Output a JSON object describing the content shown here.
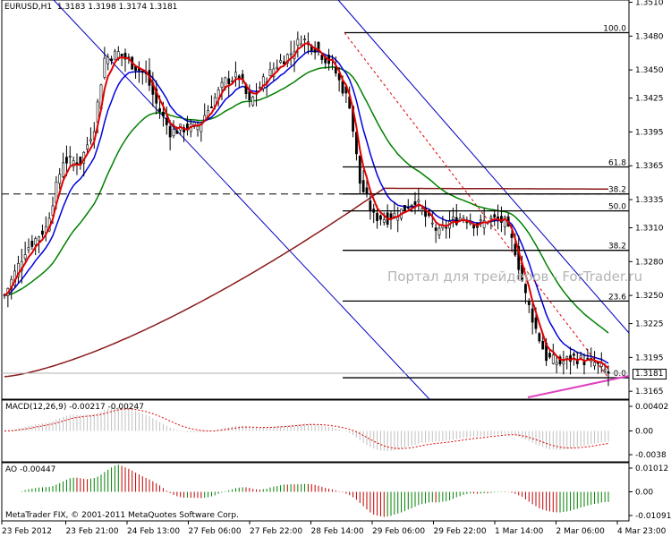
{
  "header": {
    "symbol_label": "EURUSD,H1",
    "ohlc": "1.3183 1.3198 1.3174 1.3181"
  },
  "watermark": "Портал для трейдеров - ForTrader.ru",
  "copyright": "MetaTrader FIX, © 2001-2011 MetaQuotes Software Corp.",
  "macd_label": "MACD(12,26,9) -0.00217 -0.00247",
  "ao_label": "AO -0.00447",
  "current_price": "1.3181",
  "colors": {
    "candle": "#000000",
    "ema_fast": "#e00000",
    "ema_mid": "#0000e0",
    "ema_slow": "#008000",
    "ema_long": "#8b1a1a",
    "fib": "#000000",
    "channel": "#0000c0",
    "trend_pink": "#e040c0",
    "macd_hist": "#c0c0c0",
    "macd_signal": "#e00000",
    "ao_up": "#008000",
    "ao_down": "#c00000"
  },
  "chart_data": {
    "type": "candlestick",
    "symbol": "EURUSD",
    "timeframe": "H1",
    "x_tick_labels": [
      "23 Feb 2012",
      "23 Feb 21:00",
      "24 Feb 13:00",
      "27 Feb 06:00",
      "27 Feb 22:00",
      "28 Feb 14:00",
      "29 Feb 06:00",
      "29 Feb 22:00",
      "1 Mar 14:00",
      "2 Mar 06:00",
      "4 Mar 23:00"
    ],
    "y_ticks": [
      "1.3510",
      "1.3480",
      "1.3450",
      "1.3425",
      "1.3395",
      "1.3365",
      "1.3335",
      "1.3310",
      "1.3280",
      "1.3250",
      "1.3225",
      "1.3195",
      "1.3165"
    ],
    "ylim": [
      1.3158,
      1.3512
    ],
    "horizontal_line": 1.334,
    "price_anchors": [
      {
        "bar": 0,
        "price": 1.325
      },
      {
        "bar": 6,
        "price": 1.329
      },
      {
        "bar": 12,
        "price": 1.331
      },
      {
        "bar": 17,
        "price": 1.337
      },
      {
        "bar": 22,
        "price": 1.3368
      },
      {
        "bar": 26,
        "price": 1.34
      },
      {
        "bar": 29,
        "price": 1.346
      },
      {
        "bar": 33,
        "price": 1.3465
      },
      {
        "bar": 37,
        "price": 1.3455
      },
      {
        "bar": 41,
        "price": 1.3445
      },
      {
        "bar": 44,
        "price": 1.342
      },
      {
        "bar": 48,
        "price": 1.3395
      },
      {
        "bar": 52,
        "price": 1.3398
      },
      {
        "bar": 56,
        "price": 1.34
      },
      {
        "bar": 60,
        "price": 1.342
      },
      {
        "bar": 64,
        "price": 1.344
      },
      {
        "bar": 68,
        "price": 1.3445
      },
      {
        "bar": 71,
        "price": 1.342
      },
      {
        "bar": 75,
        "price": 1.344
      },
      {
        "bar": 79,
        "price": 1.3455
      },
      {
        "bar": 83,
        "price": 1.3465
      },
      {
        "bar": 86,
        "price": 1.3478
      },
      {
        "bar": 90,
        "price": 1.347
      },
      {
        "bar": 93,
        "price": 1.346
      },
      {
        "bar": 95,
        "price": 1.3455
      },
      {
        "bar": 97,
        "price": 1.344
      },
      {
        "bar": 100,
        "price": 1.342
      },
      {
        "bar": 103,
        "price": 1.335
      },
      {
        "bar": 107,
        "price": 1.332
      },
      {
        "bar": 111,
        "price": 1.3318
      },
      {
        "bar": 115,
        "price": 1.3325
      },
      {
        "bar": 119,
        "price": 1.3335
      },
      {
        "bar": 122,
        "price": 1.332
      },
      {
        "bar": 126,
        "price": 1.3305
      },
      {
        "bar": 129,
        "price": 1.3315
      },
      {
        "bar": 133,
        "price": 1.332
      },
      {
        "bar": 137,
        "price": 1.3312
      },
      {
        "bar": 141,
        "price": 1.3318
      },
      {
        "bar": 145,
        "price": 1.3315
      },
      {
        "bar": 148,
        "price": 1.329
      },
      {
        "bar": 151,
        "price": 1.325
      },
      {
        "bar": 154,
        "price": 1.322
      },
      {
        "bar": 157,
        "price": 1.3195
      },
      {
        "bar": 161,
        "price": 1.319
      },
      {
        "bar": 165,
        "price": 1.3195
      },
      {
        "bar": 168,
        "price": 1.3192
      },
      {
        "bar": 171,
        "price": 1.319
      },
      {
        "bar": 175,
        "price": 1.3181
      }
    ],
    "fibonacci_levels": [
      {
        "label": "100.0",
        "price": 1.3483
      },
      {
        "label": "61.8",
        "price": 1.3364
      },
      {
        "label": "38.2",
        "price": 1.334
      },
      {
        "label": "50.0",
        "price": 1.3325
      },
      {
        "label": "38.2",
        "price": 1.329
      },
      {
        "label": "23.6",
        "price": 1.3245
      },
      {
        "label": "0.0",
        "price": 1.3177
      }
    ],
    "macd": {
      "ticks": [
        "0.00402",
        "0.00",
        "-0.0038"
      ],
      "ylim": [
        -0.0045,
        0.0045
      ]
    },
    "ao": {
      "ticks": [
        "0.01012",
        "0.00",
        "-0.01091"
      ],
      "ylim": [
        -0.0115,
        0.0115
      ]
    }
  }
}
